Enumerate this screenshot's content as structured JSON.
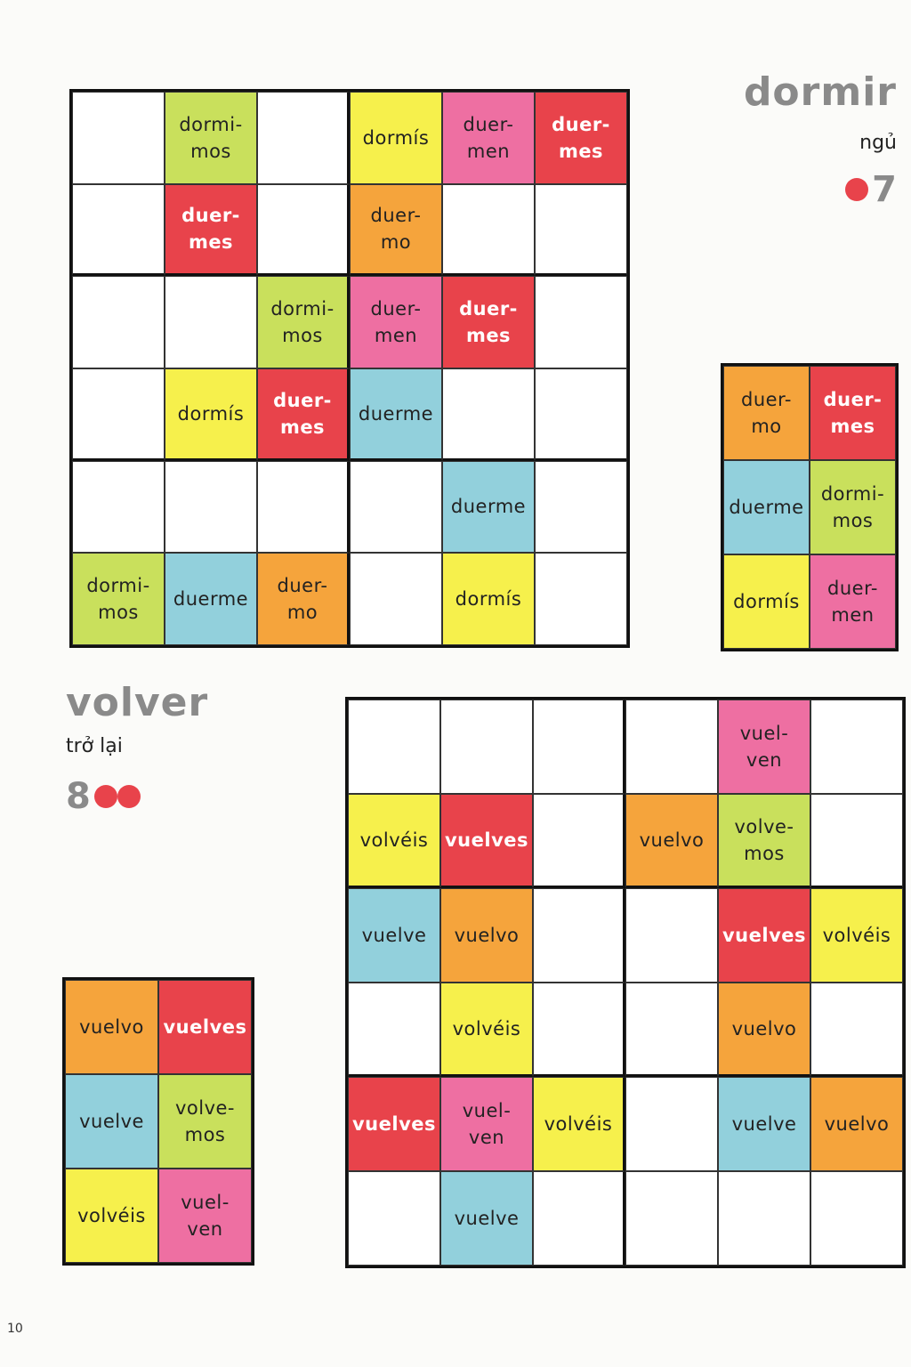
{
  "colors": {
    "lime": "#c9e05c",
    "yellow": "#f6f04c",
    "pink": "#ee6fa2",
    "red": "#e8434b",
    "orange": "#f5a43c",
    "blue": "#92d0dc",
    "accent_dot": "#e8434b"
  },
  "dormir": {
    "title": "dormir",
    "translation": "ngủ",
    "puzzle_number": "7",
    "difficulty_dots": 1,
    "grid": [
      [
        [
          "",
          ""
        ],
        [
          "dormi-\nmos",
          "lime"
        ],
        [
          "",
          ""
        ],
        [
          "dormís",
          "yellow"
        ],
        [
          "duer-\nmen",
          "pink"
        ],
        [
          "duer-\nmes",
          "red"
        ]
      ],
      [
        [
          "",
          ""
        ],
        [
          "duer-\nmes",
          "red"
        ],
        [
          "",
          ""
        ],
        [
          "duer-\nmo",
          "orange"
        ],
        [
          "",
          ""
        ],
        [
          "",
          ""
        ]
      ],
      [
        [
          "",
          ""
        ],
        [
          "",
          ""
        ],
        [
          "dormi-\nmos",
          "lime"
        ],
        [
          "duer-\nmen",
          "pink"
        ],
        [
          "duer-\nmes",
          "red"
        ],
        [
          "",
          ""
        ]
      ],
      [
        [
          "",
          ""
        ],
        [
          "dormís",
          "yellow"
        ],
        [
          "duer-\nmes",
          "red"
        ],
        [
          "duerme",
          "blue"
        ],
        [
          "",
          ""
        ],
        [
          "",
          ""
        ]
      ],
      [
        [
          "",
          ""
        ],
        [
          "",
          ""
        ],
        [
          "",
          ""
        ],
        [
          "",
          ""
        ],
        [
          "duerme",
          "blue"
        ],
        [
          "",
          ""
        ]
      ],
      [
        [
          "dormi-\nmos",
          "lime"
        ],
        [
          "duerme",
          "blue"
        ],
        [
          "duer-\nmo",
          "orange"
        ],
        [
          "",
          ""
        ],
        [
          "dormís",
          "yellow"
        ],
        [
          "",
          ""
        ]
      ]
    ],
    "legend": [
      [
        [
          "duer-\nmo",
          "orange"
        ],
        [
          "duer-\nmes",
          "red"
        ]
      ],
      [
        [
          "duerme",
          "blue"
        ],
        [
          "dormi-\nmos",
          "lime"
        ]
      ],
      [
        [
          "dormís",
          "yellow"
        ],
        [
          "duer-\nmen",
          "pink"
        ]
      ]
    ]
  },
  "volver": {
    "title": "volver",
    "translation": "trở lại",
    "puzzle_number": "8",
    "difficulty_dots": 2,
    "grid": [
      [
        [
          "",
          ""
        ],
        [
          "",
          ""
        ],
        [
          "",
          ""
        ],
        [
          "",
          ""
        ],
        [
          "vuel-\nven",
          "pink"
        ],
        [
          "",
          ""
        ]
      ],
      [
        [
          "volvéis",
          "yellow"
        ],
        [
          "vuelves",
          "red"
        ],
        [
          "",
          ""
        ],
        [
          "vuelvo",
          "orange"
        ],
        [
          "volve-\nmos",
          "lime"
        ],
        [
          "",
          ""
        ]
      ],
      [
        [
          "vuelve",
          "blue"
        ],
        [
          "vuelvo",
          "orange"
        ],
        [
          "",
          ""
        ],
        [
          "",
          ""
        ],
        [
          "vuelves",
          "red"
        ],
        [
          "volvéis",
          "yellow"
        ]
      ],
      [
        [
          "",
          ""
        ],
        [
          "volvéis",
          "yellow"
        ],
        [
          "",
          ""
        ],
        [
          "",
          ""
        ],
        [
          "vuelvo",
          "orange"
        ],
        [
          "",
          ""
        ]
      ],
      [
        [
          "vuelves",
          "red"
        ],
        [
          "vuel-\nven",
          "pink"
        ],
        [
          "volvéis",
          "yellow"
        ],
        [
          "",
          ""
        ],
        [
          "vuelve",
          "blue"
        ],
        [
          "vuelvo",
          "orange"
        ]
      ],
      [
        [
          "",
          ""
        ],
        [
          "vuelve",
          "blue"
        ],
        [
          "",
          ""
        ],
        [
          "",
          ""
        ],
        [
          "",
          ""
        ],
        [
          "",
          ""
        ]
      ]
    ],
    "legend": [
      [
        [
          "vuelvo",
          "orange"
        ],
        [
          "vuelves",
          "red"
        ]
      ],
      [
        [
          "vuelve",
          "blue"
        ],
        [
          "volve-\nmos",
          "lime"
        ]
      ],
      [
        [
          "volvéis",
          "yellow"
        ],
        [
          "vuel-\nven",
          "pink"
        ]
      ]
    ]
  },
  "page_number": "10"
}
